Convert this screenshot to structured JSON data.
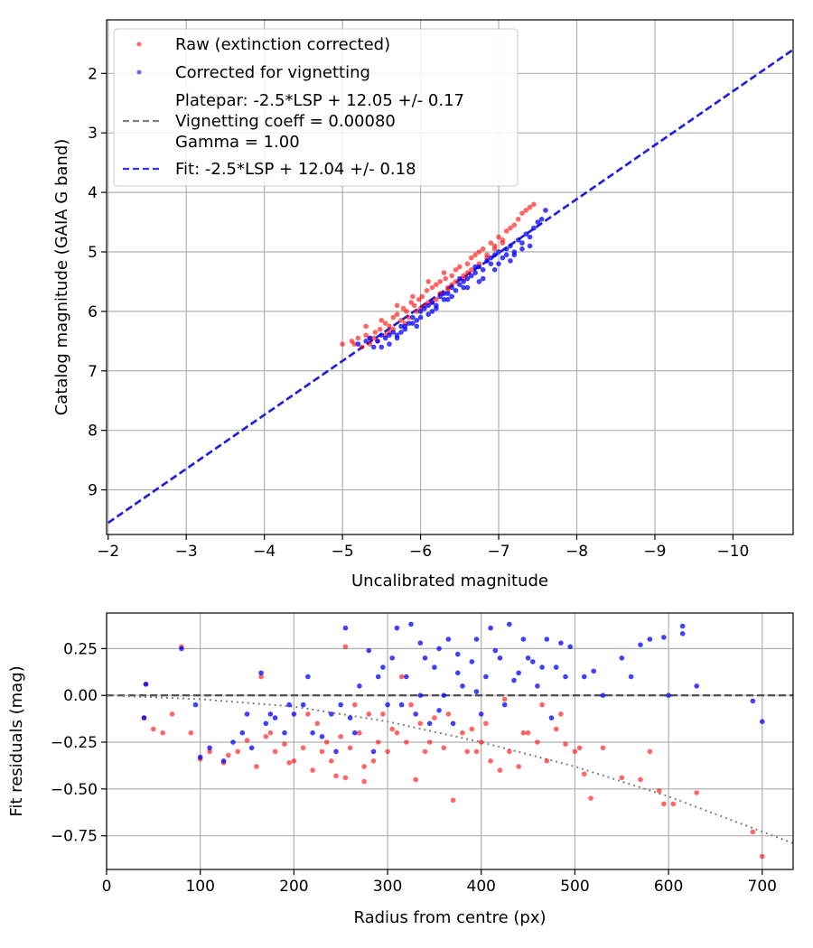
{
  "chart_data": [
    {
      "type": "scatter",
      "title": "",
      "xlabel": "Uncalibrated magnitude",
      "ylabel": "Catalog magnitude (GAIA G band)",
      "xlim": [
        -1.98,
        -10.77
      ],
      "ylim": [
        9.75,
        1.1
      ],
      "x_inverted": true,
      "y_inverted": true,
      "xticks": [
        -2,
        -3,
        -4,
        -5,
        -6,
        -7,
        -8,
        -9,
        -10
      ],
      "xtick_labels": [
        "−2",
        "−3",
        "−4",
        "−5",
        "−6",
        "−7",
        "−8",
        "−9",
        "−10"
      ],
      "yticks": [
        2,
        3,
        4,
        5,
        6,
        7,
        8,
        9
      ],
      "ytick_labels": [
        "2",
        "3",
        "4",
        "5",
        "6",
        "7",
        "8",
        "9"
      ],
      "grid": true,
      "legend_position": "top-left",
      "legend": [
        {
          "label": "Raw (extinction corrected)",
          "marker": "dot",
          "color": "#ff0000"
        },
        {
          "label": "Corrected for vignetting",
          "marker": "dot",
          "color": "#0000ff"
        },
        {
          "label": "Platepar: -2.5*LSP + 12.05 +/- 0.17",
          "marker": "dash",
          "color": "#808080"
        },
        {
          "label": "Vignetting coeff = 0.00080",
          "marker": "none",
          "color": "#808080"
        },
        {
          "label": "Gamma = 1.00",
          "marker": "none",
          "color": "#808080"
        },
        {
          "label": "Fit: -2.5*LSP + 12.04 +/- 0.18",
          "marker": "dash",
          "color": "#0000ff"
        }
      ],
      "lines": [
        {
          "name": "Platepar",
          "x": [
            -2.0,
            -10.8
          ],
          "y": [
            9.56,
            1.58
          ],
          "color": "#808080",
          "style": "dashed"
        },
        {
          "name": "Fit",
          "x": [
            -2.0,
            -10.8
          ],
          "y": [
            9.55,
            1.57
          ],
          "color": "#0000ff",
          "style": "dashed"
        }
      ],
      "series": [
        {
          "name": "Raw (extinction corrected)",
          "color": "#ff0000",
          "x": [
            -5.0,
            -5.12,
            -5.2,
            -5.3,
            -5.35,
            -5.42,
            -5.48,
            -5.55,
            -5.6,
            -5.65,
            -5.7,
            -5.78,
            -5.82,
            -5.88,
            -5.92,
            -5.98,
            -6.02,
            -6.08,
            -6.1,
            -6.15,
            -6.2,
            -6.25,
            -6.28,
            -6.32,
            -6.35,
            -6.4,
            -6.45,
            -6.5,
            -6.55,
            -6.6,
            -6.65,
            -6.7,
            -6.75,
            -6.8,
            -6.85,
            -6.9,
            -6.95,
            -7.0,
            -7.05,
            -7.1,
            -7.15,
            -7.2,
            -7.25,
            -7.3,
            -7.35,
            -7.4,
            -7.45,
            -5.3,
            -5.5,
            -5.7,
            -5.9,
            -6.1,
            -6.3,
            -5.4,
            -5.6,
            -5.8,
            -6.0,
            -6.2,
            -6.4,
            -6.6,
            -5.25,
            -5.45,
            -5.65,
            -5.85,
            -6.05,
            -6.25,
            -6.45,
            -6.65,
            -6.85,
            -7.05,
            -5.15,
            -5.35,
            -5.55,
            -5.75,
            -5.95,
            -6.15,
            -6.35,
            -6.55,
            -6.75,
            -6.95
          ],
          "y": [
            6.55,
            6.5,
            6.45,
            6.4,
            6.55,
            6.35,
            6.3,
            6.2,
            6.25,
            6.1,
            6.05,
            5.95,
            6.0,
            5.85,
            5.9,
            5.8,
            5.75,
            5.65,
            5.85,
            5.6,
            5.55,
            5.5,
            5.7,
            5.45,
            5.6,
            5.4,
            5.3,
            5.25,
            5.45,
            5.2,
            5.1,
            5.05,
            5.0,
            4.95,
            5.05,
            4.85,
            4.9,
            4.75,
            4.8,
            4.65,
            4.6,
            4.55,
            4.45,
            4.35,
            4.3,
            4.25,
            4.2,
            6.25,
            6.15,
            5.9,
            5.75,
            5.5,
            5.35,
            6.45,
            6.35,
            6.2,
            5.95,
            5.8,
            5.55,
            5.35,
            6.6,
            6.5,
            6.3,
            6.1,
            5.9,
            5.7,
            5.5,
            5.3,
            5.1,
            4.85,
            6.55,
            6.45,
            6.4,
            6.15,
            6.0,
            5.85,
            5.65,
            5.4,
            5.2,
            4.95
          ]
        },
        {
          "name": "Corrected for vignetting",
          "color": "#0000ff",
          "x": [
            -5.2,
            -5.3,
            -5.4,
            -5.5,
            -5.6,
            -5.65,
            -5.7,
            -5.75,
            -5.8,
            -5.85,
            -5.9,
            -5.95,
            -6.0,
            -6.05,
            -6.1,
            -6.15,
            -6.2,
            -6.25,
            -6.3,
            -6.35,
            -6.4,
            -6.45,
            -6.5,
            -6.55,
            -6.6,
            -6.65,
            -6.7,
            -6.75,
            -6.8,
            -6.85,
            -6.9,
            -6.95,
            -7.0,
            -7.05,
            -7.1,
            -7.15,
            -7.2,
            -7.25,
            -7.3,
            -7.35,
            -7.4,
            -7.45,
            -7.5,
            -7.55,
            -7.6,
            -5.45,
            -5.55,
            -5.75,
            -5.95,
            -6.15,
            -6.35,
            -6.55,
            -6.75,
            -6.95,
            -7.15,
            -5.35,
            -5.6,
            -5.8,
            -6.0,
            -6.2,
            -6.4,
            -6.6,
            -6.8,
            -7.0,
            -7.2,
            -7.4,
            -5.5,
            -5.7,
            -5.9,
            -6.1,
            -6.3,
            -6.5,
            -6.7,
            -6.9,
            -7.1,
            -7.3
          ],
          "y": [
            6.55,
            6.5,
            6.6,
            6.4,
            6.55,
            6.35,
            6.45,
            6.25,
            6.3,
            6.2,
            6.1,
            6.25,
            6.0,
            5.95,
            6.05,
            5.85,
            5.9,
            5.75,
            5.8,
            5.7,
            5.6,
            5.65,
            5.55,
            5.5,
            5.45,
            5.4,
            5.35,
            5.25,
            5.3,
            5.15,
            5.2,
            5.05,
            5.0,
            5.1,
            4.95,
            4.9,
            5.0,
            4.8,
            4.85,
            4.7,
            4.75,
            4.6,
            4.5,
            4.45,
            4.3,
            6.5,
            6.45,
            6.35,
            6.15,
            6.0,
            5.8,
            5.6,
            5.5,
            5.3,
            5.15,
            6.45,
            6.4,
            6.25,
            6.1,
            5.95,
            5.75,
            5.6,
            5.45,
            5.2,
            5.05,
            4.9,
            6.6,
            6.4,
            6.2,
            5.9,
            5.7,
            5.45,
            5.25,
            5.1,
            5.05,
            4.95
          ]
        }
      ]
    },
    {
      "type": "scatter",
      "title": "",
      "xlabel": "Radius from centre (px)",
      "ylabel": "Fit residuals (mag)",
      "xlim": [
        0,
        733
      ],
      "ylim": [
        -0.93,
        0.44
      ],
      "xticks": [
        0,
        100,
        200,
        300,
        400,
        500,
        600,
        700
      ],
      "xtick_labels": [
        "0",
        "100",
        "200",
        "300",
        "400",
        "500",
        "600",
        "700"
      ],
      "yticks": [
        0.25,
        0.0,
        -0.25,
        -0.5,
        -0.75
      ],
      "ytick_labels": [
        "0.25",
        "0.00",
        "−0.25",
        "−0.50",
        "−0.75"
      ],
      "grid": true,
      "lines": [
        {
          "name": "zero",
          "x": [
            0,
            733
          ],
          "y": [
            0,
            0
          ],
          "color": "#555555",
          "style": "dashed"
        },
        {
          "name": "vignetting model",
          "x": [
            0,
            100,
            200,
            300,
            400,
            500,
            600,
            733
          ],
          "y": [
            0.0,
            -0.02,
            -0.06,
            -0.14,
            -0.25,
            -0.38,
            -0.54,
            -0.79
          ],
          "color": "#808080",
          "style": "dotted"
        }
      ],
      "series": [
        {
          "name": "Raw (extinction corrected)",
          "color": "#ff0000",
          "x": [
            40,
            42,
            50,
            60,
            70,
            80,
            90,
            100,
            110,
            125,
            130,
            140,
            150,
            160,
            165,
            170,
            180,
            190,
            200,
            210,
            215,
            220,
            230,
            240,
            245,
            250,
            255,
            260,
            270,
            275,
            280,
            290,
            300,
            310,
            315,
            320,
            330,
            335,
            340,
            350,
            360,
            370,
            380,
            390,
            395,
            400,
            410,
            420,
            430,
            440,
            450,
            460,
            470,
            480,
            490,
            500,
            510,
            517,
            530,
            550,
            570,
            580,
            590,
            595,
            605,
            630,
            690,
            700,
            225,
            265,
            285,
            305,
            325,
            345,
            365,
            385,
            405,
            425,
            445,
            465,
            485,
            505,
            175,
            195,
            235,
            255,
            275,
            295
          ],
          "y": [
            -0.12,
            0.06,
            -0.18,
            -0.2,
            -0.1,
            0.26,
            -0.2,
            -0.34,
            -0.3,
            -0.36,
            -0.32,
            -0.3,
            -0.24,
            -0.38,
            0.1,
            -0.22,
            -0.3,
            -0.26,
            -0.35,
            -0.28,
            -0.1,
            -0.4,
            -0.3,
            -0.35,
            -0.43,
            -0.22,
            0.26,
            -0.28,
            -0.2,
            -0.46,
            -0.1,
            -0.25,
            -0.3,
            -0.2,
            0.1,
            -0.25,
            -0.45,
            -0.15,
            -0.3,
            -0.12,
            -0.28,
            -0.56,
            -0.2,
            -0.18,
            -0.3,
            -0.25,
            -0.35,
            -0.4,
            -0.3,
            -0.38,
            -0.2,
            -0.25,
            -0.35,
            -0.18,
            -0.26,
            -0.3,
            -0.42,
            -0.55,
            -0.28,
            -0.44,
            -0.45,
            -0.3,
            -0.51,
            -0.58,
            -0.58,
            -0.52,
            -0.73,
            -0.86,
            -0.15,
            -0.05,
            -0.35,
            -0.18,
            -0.05,
            -0.25,
            -0.1,
            -0.3,
            -0.15,
            -0.02,
            -0.2,
            -0.05,
            -0.1,
            -0.28,
            -0.2,
            -0.36,
            -0.25,
            -0.44,
            -0.38,
            -0.1
          ]
        },
        {
          "name": "Corrected for vignetting",
          "color": "#0000ff",
          "x": [
            40,
            42,
            80,
            95,
            100,
            110,
            125,
            135,
            145,
            150,
            155,
            165,
            170,
            175,
            180,
            190,
            195,
            200,
            210,
            215,
            220,
            230,
            240,
            250,
            255,
            260,
            270,
            280,
            285,
            290,
            300,
            305,
            310,
            320,
            325,
            330,
            335,
            340,
            345,
            350,
            355,
            360,
            365,
            370,
            375,
            380,
            390,
            395,
            400,
            405,
            410,
            420,
            425,
            430,
            440,
            445,
            450,
            460,
            465,
            470,
            480,
            485,
            490,
            495,
            510,
            520,
            530,
            550,
            560,
            570,
            580,
            600,
            615,
            630,
            690,
            700,
            245,
            265,
            295,
            315,
            335,
            355,
            375,
            395,
            415,
            435,
            455,
            475,
            595,
            615
          ],
          "y": [
            -0.12,
            0.06,
            0.25,
            -0.05,
            -0.33,
            -0.28,
            -0.35,
            -0.25,
            -0.2,
            -0.1,
            -0.28,
            0.12,
            -0.15,
            -0.1,
            -0.12,
            -0.2,
            -0.05,
            -0.1,
            -0.05,
            0.1,
            -0.2,
            -0.22,
            -0.1,
            -0.05,
            0.36,
            -0.12,
            0.05,
            0.24,
            -0.3,
            0.1,
            -0.05,
            0.2,
            0.36,
            0.1,
            0.38,
            -0.1,
            0.0,
            0.2,
            -0.15,
            0.15,
            0.25,
            0.0,
            0.3,
            -0.15,
            0.22,
            0.05,
            0.18,
            0.3,
            -0.1,
            0.1,
            0.36,
            0.2,
            -0.05,
            0.38,
            0.12,
            0.3,
            0.2,
            0.05,
            0.15,
            0.3,
            0.15,
            0.28,
            0.1,
            0.26,
            0.1,
            0.13,
            0.0,
            0.2,
            0.1,
            0.27,
            0.3,
            0.0,
            0.37,
            0.05,
            -0.03,
            -0.14,
            -0.3,
            -0.2,
            0.15,
            -0.05,
            0.28,
            -0.08,
            0.12,
            0.02,
            0.24,
            0.08,
            0.18,
            -0.12,
            0.31,
            0.33
          ]
        }
      ]
    }
  ]
}
